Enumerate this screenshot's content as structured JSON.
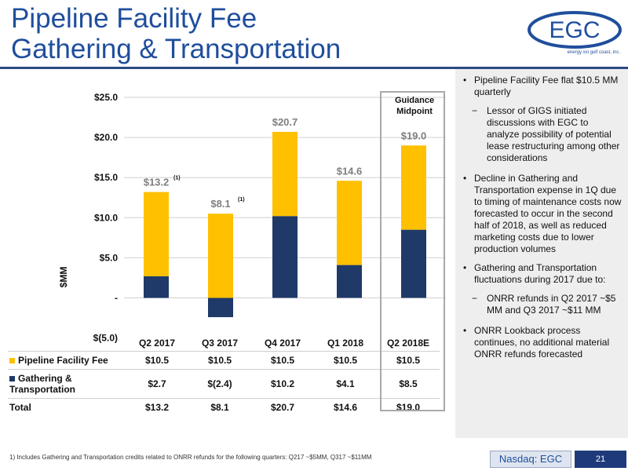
{
  "title": {
    "line1": "Pipeline Facility Fee",
    "line2": "Gathering & Transportation"
  },
  "logo": {
    "text": "EGC",
    "tagline": "energy xxi gulf coast, inc."
  },
  "colors": {
    "pipeline": "#ffc000",
    "gathering": "#1f3a68",
    "title": "#1f4e9c"
  },
  "chart_data": {
    "type": "bar",
    "stacked": true,
    "categories": [
      "Q2 2017",
      "Q3 2017",
      "Q4 2017",
      "Q1 2018",
      "Q2 2018E"
    ],
    "series": [
      {
        "name": "Pipeline Facility Fee",
        "values": [
          10.5,
          10.5,
          10.5,
          10.5,
          10.5
        ]
      },
      {
        "name": "Gathering & Transportation",
        "values": [
          2.7,
          -2.4,
          10.2,
          4.1,
          8.5
        ]
      }
    ],
    "totals": [
      13.2,
      8.1,
      20.7,
      14.6,
      19.0
    ],
    "total_labels": [
      "$13.2",
      "$8.1",
      "$20.7",
      "$14.6",
      "$19.0"
    ],
    "footnote_marks": [
      "(1)",
      "(1)",
      "",
      "",
      ""
    ],
    "ylabel": "$MM",
    "ylim": [
      -5,
      25
    ],
    "yticks": [
      -5,
      0,
      5,
      10,
      15,
      20,
      25
    ],
    "ytick_labels": [
      "$(5.0)",
      "-",
      "$5.0",
      "$10.0",
      "$15.0",
      "$20.0",
      "$25.0"
    ],
    "grid": true,
    "annotation": {
      "text": "Guidance Midpoint",
      "lines": [
        "Guidance",
        "Midpoint"
      ]
    }
  },
  "table": {
    "headers": [
      "Q2 2017",
      "Q3 2017",
      "Q4 2017",
      "Q1 2018",
      "Q2 2018E"
    ],
    "rows": [
      {
        "label": "Pipeline Facility Fee",
        "cells": [
          "$10.5",
          "$10.5",
          "$10.5",
          "$10.5",
          "$10.5"
        ]
      },
      {
        "label_line1": "Gathering &",
        "label_line2": "Transportation",
        "cells": [
          "$2.7",
          "$(2.4)",
          "$10.2",
          "$4.1",
          "$8.5"
        ]
      },
      {
        "label": "Total",
        "cells": [
          "$13.2",
          "$8.1",
          "$20.7",
          "$14.6",
          "$19.0"
        ]
      }
    ]
  },
  "bullets": {
    "b1": "Pipeline Facility Fee flat $10.5 MM quarterly",
    "b1_sub": "Lessor of GIGS initiated discussions with EGC to analyze possibility of potential lease restructuring among other considerations",
    "b2": "Decline in Gathering and Transportation expense in 1Q due to timing of maintenance costs now forecasted to occur in the second half of 2018, as well as reduced marketing costs due to lower production volumes",
    "b3": "Gathering and Transportation fluctuations during 2017 due to:",
    "b3_sub1": "ONRR refunds in Q2 2017 ~$5 MM and Q3 2017 ~$11 MM",
    "b3_sub2": "ONRR Lookback process continues, no additional material ONRR refunds forecasted"
  },
  "footer": {
    "footnote": "1)    Includes Gathering and Transportation credits related to ONRR refunds for the following quarters: Q217 ~$5MM, Q317 ~$11MM",
    "nasdaq": "Nasdaq: EGC",
    "page": "21"
  }
}
